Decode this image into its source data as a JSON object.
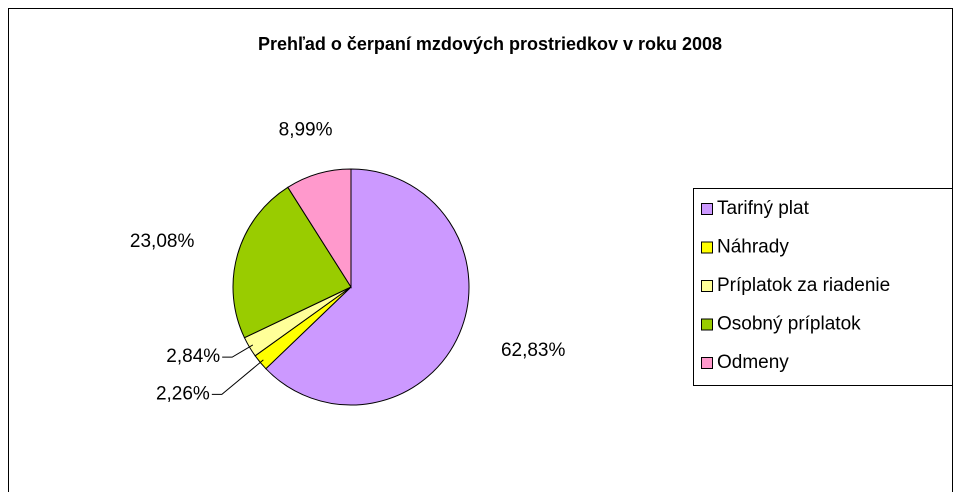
{
  "chart_data": {
    "type": "pie",
    "title": "Prehľad o čerpaní mzdových prostriedkov v roku 2008",
    "categories": [
      "Tarifný plat",
      "Náhrady",
      "Príplatok za riadenie",
      "Osobný príplatok",
      "Odmeny"
    ],
    "values": [
      62.83,
      2.26,
      2.84,
      23.08,
      8.99
    ],
    "value_labels": [
      "62,83%",
      "2,26%",
      "2,84%",
      "23,08%",
      "8,99%"
    ],
    "colors": [
      "#cc99ff",
      "#ffff00",
      "#ffff99",
      "#99cc00",
      "#ff99cc"
    ],
    "legend": "right"
  }
}
